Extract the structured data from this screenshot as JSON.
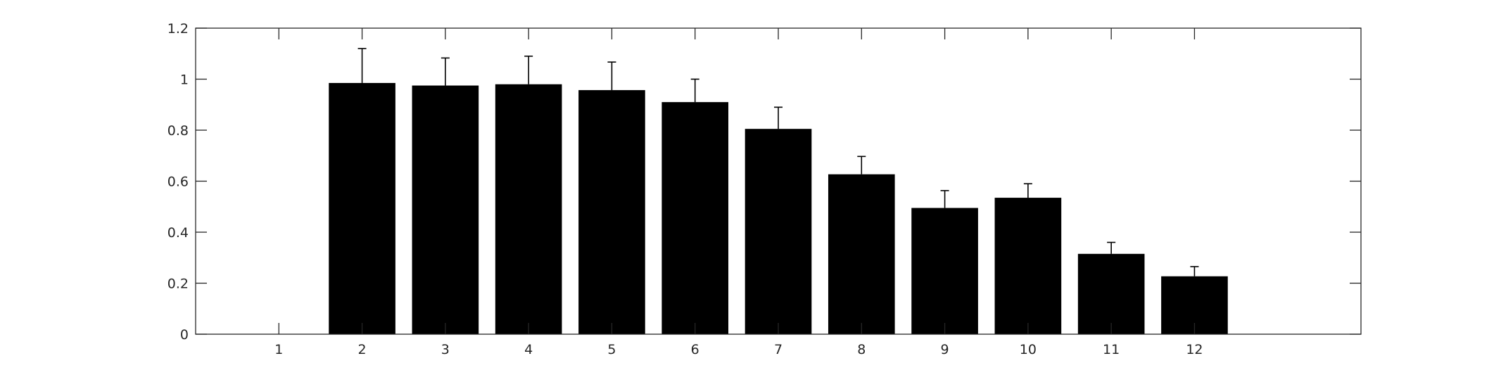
{
  "chart_data": {
    "type": "bar",
    "title": "",
    "xlabel": "",
    "ylabel": "",
    "categories": [
      "1",
      "2",
      "3",
      "4",
      "5",
      "6",
      "7",
      "8",
      "9",
      "10",
      "11",
      "12"
    ],
    "values": [
      0,
      0.985,
      0.975,
      0.98,
      0.957,
      0.91,
      0.805,
      0.627,
      0.495,
      0.535,
      0.315,
      0.227
    ],
    "error_upper": [
      0,
      0.135,
      0.108,
      0.11,
      0.11,
      0.09,
      0.085,
      0.07,
      0.068,
      0.055,
      0.045,
      0.038
    ],
    "ylim": [
      0,
      1.2
    ],
    "xlim": [
      0,
      14
    ],
    "yticks": [
      0,
      0.2,
      0.4,
      0.6,
      0.8,
      1,
      1.2
    ],
    "ytick_labels": [
      "0",
      "0.2",
      "0.4",
      "0.6",
      "0.8",
      "1",
      "1.2"
    ],
    "grid": false,
    "legend": "none",
    "bar_color": "#000000",
    "axis_color": "#262626"
  }
}
